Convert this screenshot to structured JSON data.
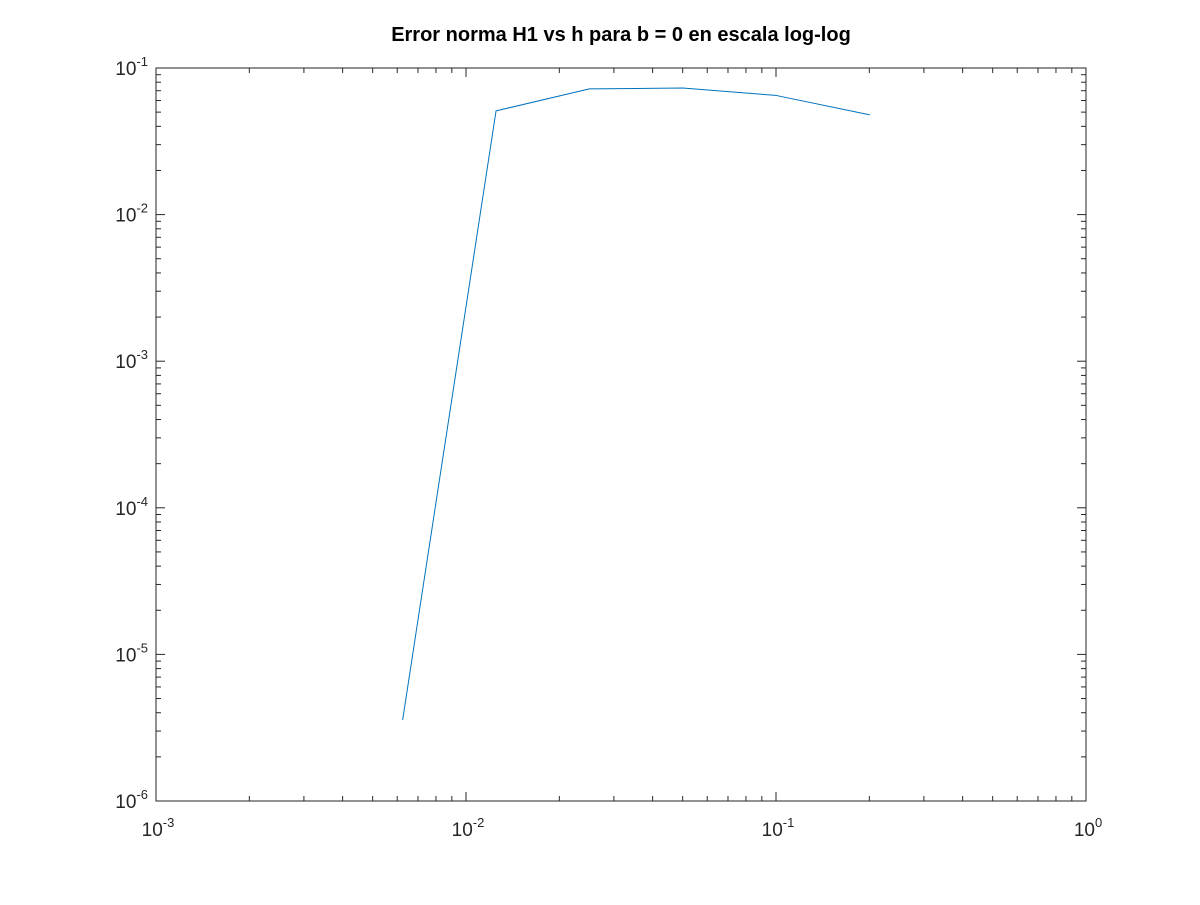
{
  "chart_data": {
    "type": "line",
    "title": "Error norma H1 vs h para b = 0 en escala log-log",
    "xlabel": "",
    "ylabel": "",
    "xscale": "log",
    "yscale": "log",
    "xlim": [
      0.001,
      1
    ],
    "ylim": [
      1e-06,
      0.1
    ],
    "grid": false,
    "legend": "none",
    "x_ticks": [
      {
        "base": "10",
        "exp": "-3"
      },
      {
        "base": "10",
        "exp": "-2"
      },
      {
        "base": "10",
        "exp": "-1"
      },
      {
        "base": "10",
        "exp": "0"
      }
    ],
    "y_ticks": [
      {
        "base": "10",
        "exp": "-6"
      },
      {
        "base": "10",
        "exp": "-5"
      },
      {
        "base": "10",
        "exp": "-4"
      },
      {
        "base": "10",
        "exp": "-3"
      },
      {
        "base": "10",
        "exp": "-2"
      },
      {
        "base": "10",
        "exp": "-1"
      }
    ],
    "series": [
      {
        "color": "#0072bd",
        "x": [
          0.00625,
          0.0125,
          0.025,
          0.05,
          0.1,
          0.2
        ],
        "y": [
          3.6e-06,
          0.051,
          0.072,
          0.073,
          0.065,
          0.048
        ]
      }
    ]
  }
}
